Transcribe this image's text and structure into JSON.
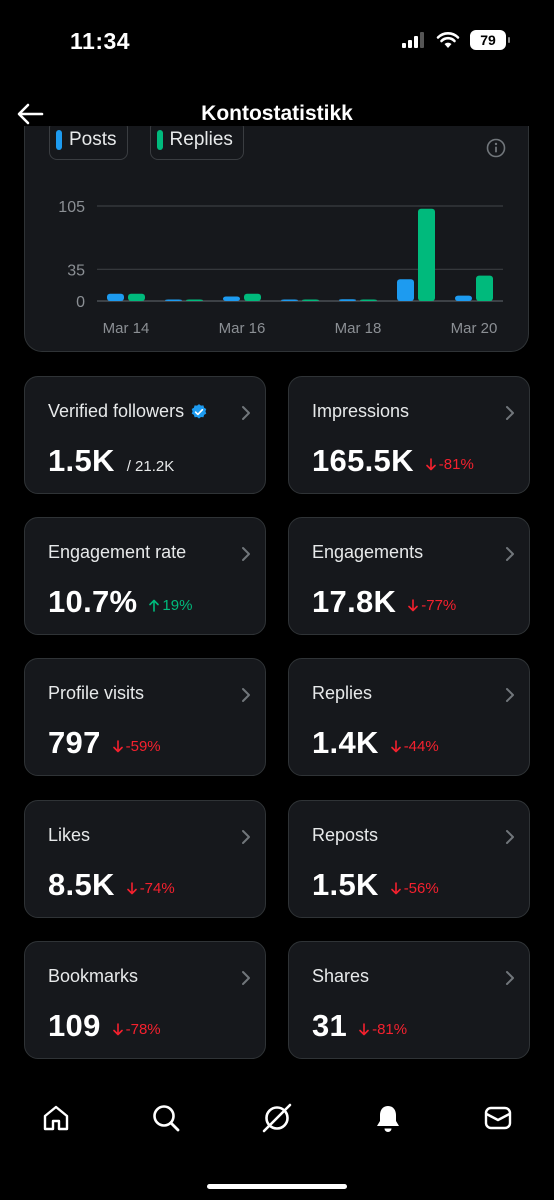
{
  "status_bar": {
    "time": "11:34",
    "battery": "79"
  },
  "header": {
    "title": "Kontostatistikk"
  },
  "legend": [
    {
      "label": "Posts",
      "color": "#1d9bf0"
    },
    {
      "label": "Replies",
      "color": "#00ba7c"
    }
  ],
  "chart_data": {
    "type": "bar",
    "categories": [
      "Mar 14",
      "Mar 15",
      "Mar 16",
      "Mar 17",
      "Mar 18",
      "Mar 19",
      "Mar 20"
    ],
    "x_tick_labels": [
      "Mar 14",
      "Mar 16",
      "Mar 18",
      "Mar 20"
    ],
    "y_ticks": [
      0,
      35,
      105
    ],
    "ylim": [
      0,
      105
    ],
    "grid": true,
    "series": [
      {
        "name": "Posts",
        "color": "#1d9bf0",
        "values": [
          8,
          1,
          5,
          1,
          2,
          24,
          6
        ]
      },
      {
        "name": "Replies",
        "color": "#00ba7c",
        "values": [
          8,
          0,
          8,
          0,
          1,
          102,
          28
        ]
      }
    ]
  },
  "metrics": [
    {
      "label": "Verified followers",
      "value": "1.5K",
      "sub": "/ 21.2K",
      "verified": true
    },
    {
      "label": "Impressions",
      "value": "165.5K",
      "change": "-81%",
      "direction": "down"
    },
    {
      "label": "Engagement rate",
      "value": "10.7%",
      "change": "19%",
      "direction": "up"
    },
    {
      "label": "Engagements",
      "value": "17.8K",
      "change": "-77%",
      "direction": "down"
    },
    {
      "label": "Profile visits",
      "value": "797",
      "change": "-59%",
      "direction": "down"
    },
    {
      "label": "Replies",
      "value": "1.4K",
      "change": "-44%",
      "direction": "down"
    },
    {
      "label": "Likes",
      "value": "8.5K",
      "change": "-74%",
      "direction": "down"
    },
    {
      "label": "Reposts",
      "value": "1.5K",
      "change": "-56%",
      "direction": "down"
    },
    {
      "label": "Bookmarks",
      "value": "109",
      "change": "-78%",
      "direction": "down"
    },
    {
      "label": "Shares",
      "value": "31",
      "change": "-81%",
      "direction": "down"
    }
  ],
  "nav": [
    {
      "icon": "home-icon"
    },
    {
      "icon": "search-icon"
    },
    {
      "icon": "grok-icon"
    },
    {
      "icon": "bell-icon"
    },
    {
      "icon": "mail-icon"
    }
  ]
}
